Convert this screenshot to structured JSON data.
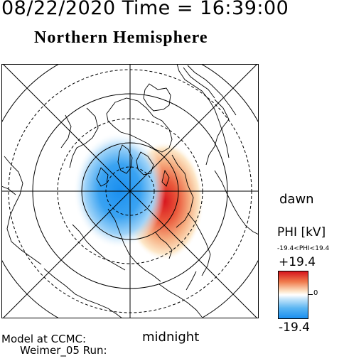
{
  "headline": "08/22/2020 Time = 16:39:00",
  "hemisphere": "Northern Hemisphere",
  "dawn_label": "dawn",
  "midnight_label": "midnight",
  "colorbar": {
    "title": "PHI [kV]",
    "range_text": "-19.4<PHI<19.4",
    "max_label": "+19.4",
    "zero_label": "0",
    "min_label": "-19.4",
    "positive_color": "#d7151d",
    "negative_color": "#1a8ff0"
  },
  "model_line1": "Model at CCMC:",
  "model_line2": "Weimer_05 Run:"
}
